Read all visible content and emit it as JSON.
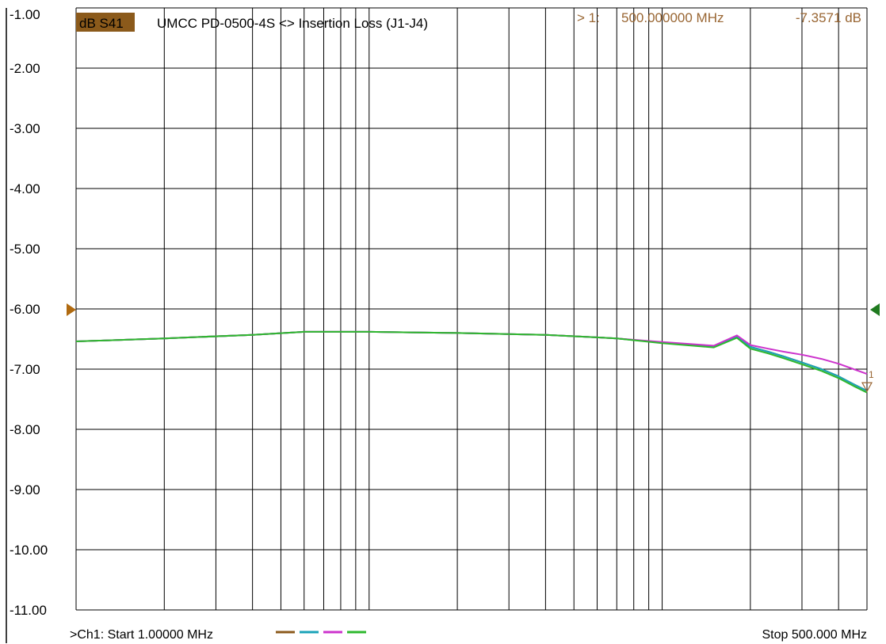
{
  "header": {
    "trace_badge": "dB S41",
    "title": "UMCC  PD-0500-4S <> Insertion Loss (J1-J4)",
    "marker_id": "> 1:",
    "marker_freq": "500.000000 MHz",
    "marker_value": "-7.3571 dB"
  },
  "footer": {
    "start_label": ">Ch1: Start  1.00000 MHz",
    "stop_label": "Stop  500.000 MHz"
  },
  "colors": {
    "trace_badge_bg": "#8b5a1b",
    "marker_text": "#996633",
    "left_ref_arrow": "#b06a10",
    "right_ref_arrow": "#1f7a1f",
    "background": "#ffffff",
    "grid": "#000000"
  },
  "chart_data": {
    "type": "line",
    "ylim": [
      -11,
      -1
    ],
    "xlim": [
      1,
      500
    ],
    "x_scale": "log",
    "grid": true,
    "yticks": [
      "-1.00",
      "-2.00",
      "-3.00",
      "-4.00",
      "-5.00",
      "-6.00",
      "-7.00",
      "-8.00",
      "-9.00",
      "-10.00",
      "-11.00"
    ],
    "x": [
      1,
      2,
      4,
      6,
      10,
      20,
      40,
      70,
      100,
      150,
      180,
      200,
      230,
      260,
      300,
      350,
      400,
      450,
      500
    ],
    "series": [
      {
        "color": "#8b5a1b",
        "values": [
          -6.54,
          -6.49,
          -6.43,
          -6.38,
          -6.38,
          -6.4,
          -6.43,
          -6.49,
          -6.56,
          -6.63,
          -6.46,
          -6.63,
          -6.71,
          -6.79,
          -6.89,
          -7.0,
          -7.12,
          -7.25,
          -7.36
        ]
      },
      {
        "color": "#1aa3b8",
        "values": [
          -6.54,
          -6.49,
          -6.43,
          -6.38,
          -6.38,
          -6.4,
          -6.43,
          -6.49,
          -6.56,
          -6.63,
          -6.46,
          -6.63,
          -6.71,
          -6.79,
          -6.89,
          -7.0,
          -7.12,
          -7.25,
          -7.36
        ]
      },
      {
        "color": "#cc33cc",
        "values": [
          -6.54,
          -6.49,
          -6.43,
          -6.38,
          -6.38,
          -6.4,
          -6.43,
          -6.49,
          -6.55,
          -6.61,
          -6.44,
          -6.6,
          -6.66,
          -6.71,
          -6.76,
          -6.83,
          -6.91,
          -7.0,
          -7.08
        ]
      },
      {
        "color": "#2eb82e",
        "values": [
          -6.54,
          -6.49,
          -6.43,
          -6.38,
          -6.38,
          -6.4,
          -6.43,
          -6.49,
          -6.57,
          -6.64,
          -6.48,
          -6.66,
          -6.74,
          -6.82,
          -6.92,
          -7.03,
          -7.15,
          -7.28,
          -7.39
        ]
      }
    ],
    "marker": {
      "label": "1",
      "x": 500,
      "y": -7.3571
    }
  }
}
